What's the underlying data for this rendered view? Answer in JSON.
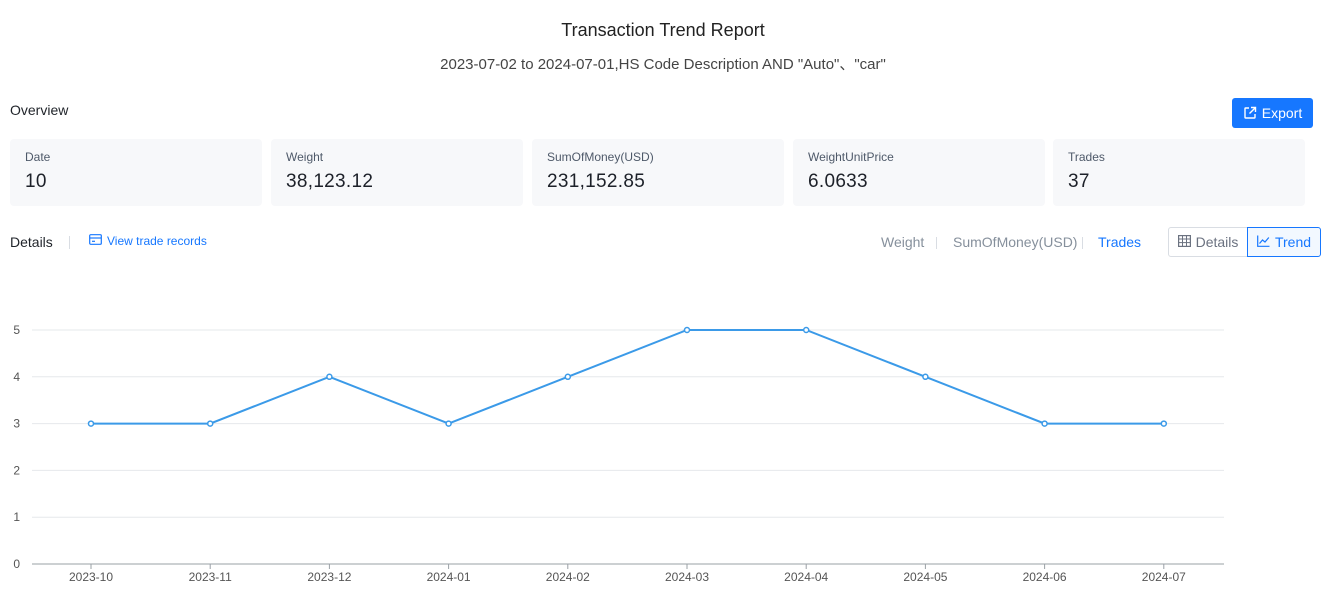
{
  "header": {
    "title": "Transaction Trend Report",
    "subtitle": "2023-07-02 to 2024-07-01,HS Code Description AND \"Auto\"、\"car\""
  },
  "overview": {
    "label": "Overview",
    "export_label": "Export",
    "stats": [
      {
        "label": "Date",
        "value": "10"
      },
      {
        "label": "Weight",
        "value": "38,123.12"
      },
      {
        "label": "SumOfMoney(USD)",
        "value": "231,152.85"
      },
      {
        "label": "WeightUnitPrice",
        "value": "6.0633"
      },
      {
        "label": "Trades",
        "value": "37"
      }
    ]
  },
  "details": {
    "label": "Details",
    "view_records_label": "View trade records",
    "metric_tabs": [
      {
        "label": "Weight",
        "active": false
      },
      {
        "label": "SumOfMoney(USD)",
        "active": false
      },
      {
        "label": "Trades",
        "active": true
      }
    ],
    "view_toggle": {
      "details_label": "Details",
      "trend_label": "Trend",
      "selected": "Trend"
    }
  },
  "colors": {
    "accent": "#1677ff",
    "series": "#3b9ae8"
  },
  "chart_data": {
    "type": "line",
    "title": "",
    "xlabel": "",
    "ylabel": "",
    "categories": [
      "2023-10",
      "2023-11",
      "2023-12",
      "2024-01",
      "2024-02",
      "2024-03",
      "2024-04",
      "2024-05",
      "2024-06",
      "2024-07"
    ],
    "series": [
      {
        "values": [
          3,
          3,
          4,
          3,
          4,
          5,
          5,
          4,
          3,
          3
        ]
      }
    ],
    "ylim": [
      0,
      5
    ],
    "yticks": [
      0,
      1,
      2,
      3,
      4,
      5
    ],
    "grid": true,
    "legend": "none"
  }
}
